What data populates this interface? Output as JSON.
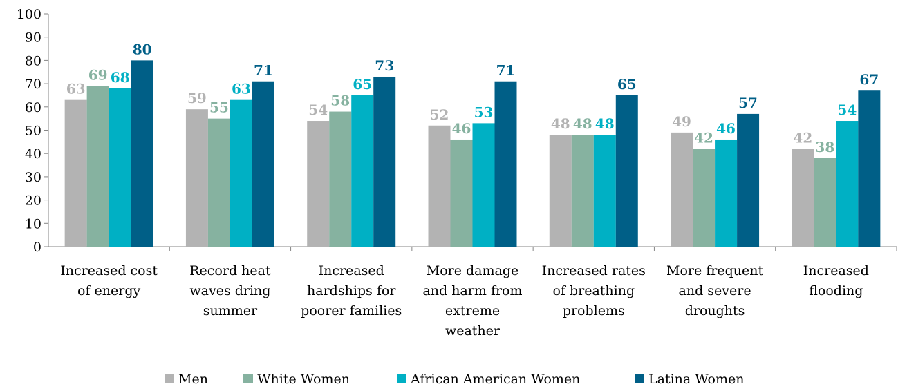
{
  "chart_data": {
    "type": "bar",
    "title": "",
    "xlabel": "",
    "ylabel": "",
    "ylim": [
      0,
      100
    ],
    "yticks": [
      0,
      10,
      20,
      30,
      40,
      50,
      60,
      70,
      80,
      90,
      100
    ],
    "grid": false,
    "legend_position": "bottom",
    "categories": [
      [
        "Increased cost",
        "of energy"
      ],
      [
        "Record heat",
        "waves dring",
        "summer"
      ],
      [
        "Increased",
        "hardships for",
        "poorer families"
      ],
      [
        "More damage",
        "and harm from",
        "extreme",
        "weather"
      ],
      [
        "Increased rates",
        "of breathing",
        "problems"
      ],
      [
        "More frequent",
        "and severe",
        "droughts"
      ],
      [
        "Increased",
        "flooding"
      ]
    ],
    "series": [
      {
        "name": "Men",
        "color": "#b3b3b3",
        "values": [
          63,
          59,
          54,
          52,
          48,
          49,
          42
        ]
      },
      {
        "name": "White Women",
        "color": "#86b2a0",
        "values": [
          69,
          55,
          58,
          46,
          48,
          42,
          38
        ]
      },
      {
        "name": "African American Women",
        "color": "#00b0c4",
        "values": [
          68,
          63,
          65,
          53,
          48,
          46,
          54
        ]
      },
      {
        "name": "Latina Women",
        "color": "#005f87",
        "values": [
          80,
          71,
          73,
          71,
          65,
          57,
          67
        ]
      }
    ]
  }
}
